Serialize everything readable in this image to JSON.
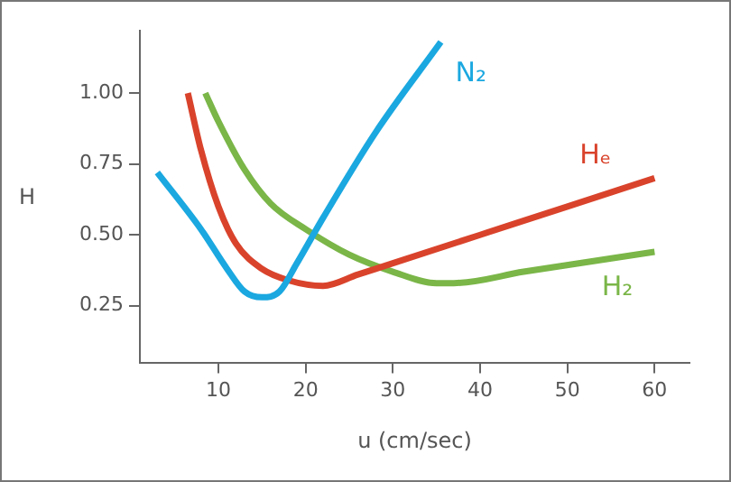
{
  "chart_data": {
    "type": "line",
    "xlabel": "u (cm/sec)",
    "ylabel": "H",
    "xlim": [
      1,
      64
    ],
    "xticks": [
      10,
      20,
      30,
      40,
      50,
      60
    ],
    "ylim": [
      0.05,
      1.22
    ],
    "yticks": [
      {
        "value": 0.25,
        "label": "0.25"
      },
      {
        "value": 0.5,
        "label": "0.50"
      },
      {
        "value": 0.75,
        "label": "0.75"
      },
      {
        "value": 1,
        "label": "1.00"
      }
    ],
    "grid": false,
    "legend": false,
    "marker": "none",
    "line_style": "solid",
    "series": [
      {
        "name": "N₂",
        "color": "#1ba8e0",
        "x": [
          3,
          8,
          11,
          13,
          15,
          17,
          19,
          22,
          28,
          35.5
        ],
        "values": [
          0.72,
          0.52,
          0.38,
          0.3,
          0.28,
          0.3,
          0.4,
          0.56,
          0.86,
          1.18
        ]
      },
      {
        "name": "Hₑ",
        "color": "#d9432c",
        "x": [
          6.5,
          8,
          10,
          12,
          15,
          18,
          22,
          26,
          30,
          40,
          50,
          60
        ],
        "values": [
          1.0,
          0.8,
          0.6,
          0.47,
          0.38,
          0.34,
          0.32,
          0.36,
          0.4,
          0.5,
          0.6,
          0.7
        ]
      },
      {
        "name": "H₂",
        "color": "#7ab648",
        "x": [
          8.5,
          10,
          13,
          16,
          20,
          25,
          30,
          35,
          37,
          45,
          60
        ],
        "values": [
          1.0,
          0.9,
          0.73,
          0.61,
          0.52,
          0.43,
          0.37,
          0.33,
          0.33,
          0.37,
          0.44
        ]
      }
    ]
  }
}
